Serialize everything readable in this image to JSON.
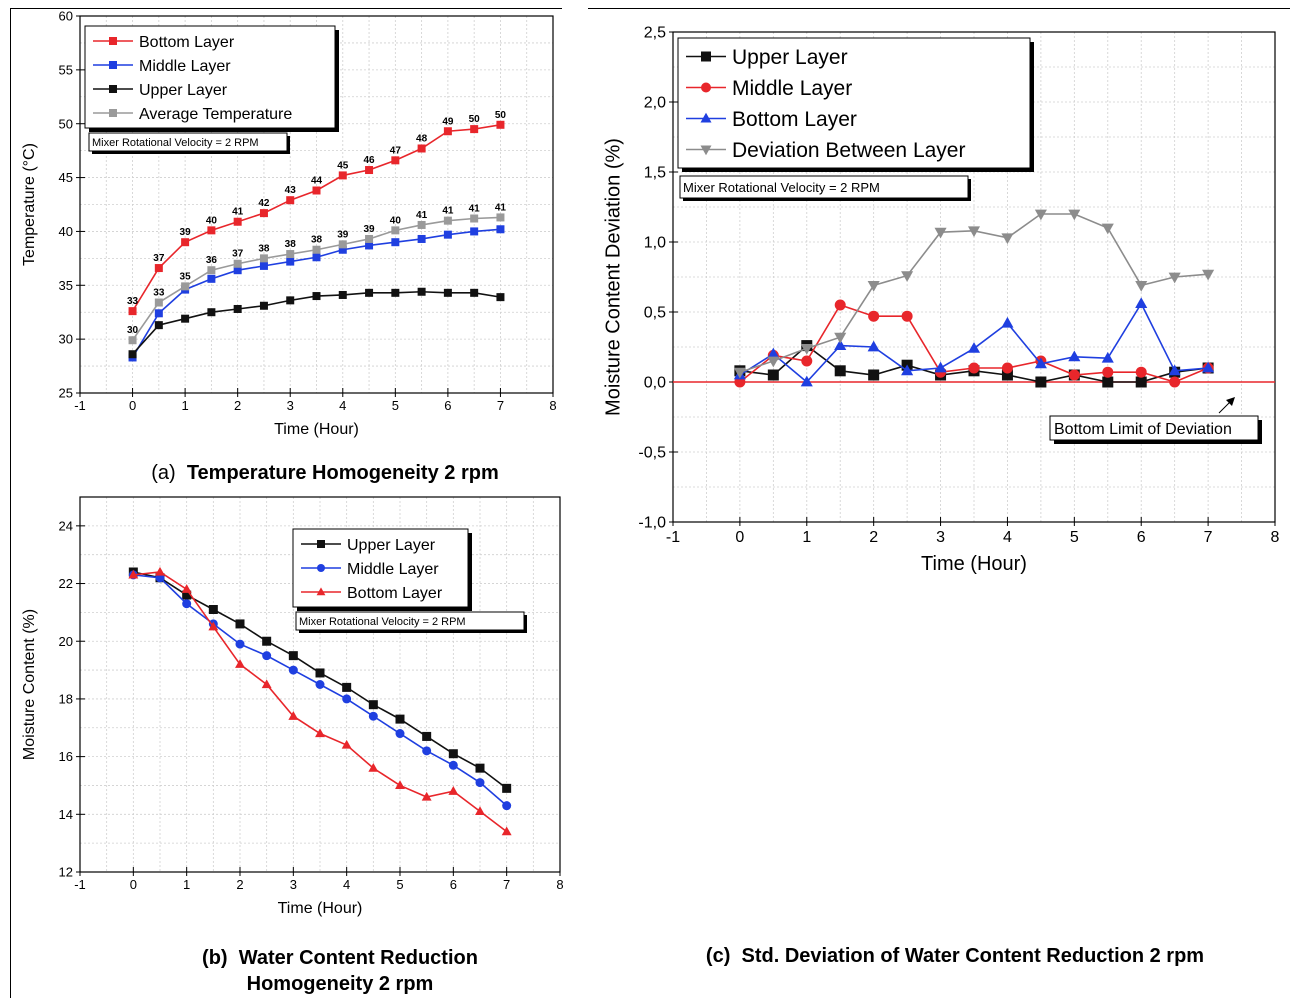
{
  "figure_panels": [
    {
      "letter": "(a)",
      "caption": "Temperature Homogeneity 2 rpm"
    },
    {
      "letter": "(b)",
      "caption_lines": [
        "Water Content Reduction",
        "Homogeneity 2 rpm"
      ]
    },
    {
      "letter": "(c)",
      "caption": "Std. Deviation of Water Content Reduction 2 rpm"
    }
  ],
  "chart_data": [
    {
      "id": "a",
      "type": "line",
      "xlabel": "Time (Hour)",
      "ylabel": "Temperature (°C)",
      "xlim": [
        -1,
        8
      ],
      "ylim": [
        25,
        60
      ],
      "xticks": [
        "-1",
        "0",
        "1",
        "2",
        "3",
        "4",
        "5",
        "6",
        "7",
        "8"
      ],
      "yticks": [
        "25",
        "30",
        "35",
        "40",
        "45",
        "50",
        "55",
        "60"
      ],
      "grid": true,
      "legend_position": "top-left",
      "annotation": "Mixer Rotational Velocity = 2 RPM",
      "x": [
        0,
        0.5,
        1,
        1.5,
        2,
        2.5,
        3,
        3.5,
        4,
        4.5,
        5,
        5.5,
        6,
        6.5,
        7
      ],
      "series": [
        {
          "name": "Bottom Layer",
          "color": "#e8262b",
          "marker": "square",
          "values": [
            32.6,
            36.6,
            39.0,
            40.1,
            40.9,
            41.7,
            42.9,
            43.8,
            45.2,
            45.7,
            46.6,
            47.7,
            49.3,
            49.5,
            49.9
          ],
          "labels": [
            "33",
            "37",
            "39",
            "40",
            "41",
            "42",
            "43",
            "44",
            "45",
            "46",
            "47",
            "48",
            "49",
            "50",
            "50"
          ]
        },
        {
          "name": "Middle Layer",
          "color": "#1f3fe0",
          "marker": "square",
          "values": [
            28.3,
            32.4,
            34.6,
            35.6,
            36.4,
            36.8,
            37.2,
            37.6,
            38.3,
            38.7,
            39.0,
            39.3,
            39.7,
            40.0,
            40.2
          ]
        },
        {
          "name": "Upper Layer",
          "color": "#111111",
          "marker": "square",
          "values": [
            28.6,
            31.3,
            31.9,
            32.5,
            32.8,
            33.1,
            33.6,
            34.0,
            34.1,
            34.3,
            34.3,
            34.4,
            34.3,
            34.3,
            33.9
          ]
        },
        {
          "name": "Average Temperature",
          "color": "#9a9a9a",
          "marker": "square",
          "values": [
            29.9,
            33.4,
            34.9,
            36.4,
            37.0,
            37.5,
            37.9,
            38.3,
            38.8,
            39.3,
            40.1,
            40.6,
            41.0,
            41.2,
            41.3
          ],
          "labels": [
            "30",
            "33",
            "35",
            "36",
            "37",
            "38",
            "38",
            "38",
            "39",
            "39",
            "40",
            "41",
            "41",
            "41",
            "41"
          ]
        }
      ]
    },
    {
      "id": "b",
      "type": "line",
      "xlabel": "Time (Hour)",
      "ylabel": "Moisture Content (%)",
      "xlim": [
        -1,
        8
      ],
      "ylim": [
        12,
        25
      ],
      "xticks": [
        "-1",
        "0",
        "1",
        "2",
        "3",
        "4",
        "5",
        "6",
        "7",
        "8"
      ],
      "yticks": [
        "12",
        "14",
        "16",
        "18",
        "20",
        "22",
        "24"
      ],
      "grid": true,
      "legend_position": "top-right",
      "annotation": "Mixer Rotational Velocity = 2 RPM",
      "x": [
        0,
        0.5,
        1,
        1.5,
        2,
        2.5,
        3,
        3.5,
        4,
        4.5,
        5,
        5.5,
        6,
        6.5,
        7
      ],
      "series": [
        {
          "name": "Upper Layer",
          "color": "#111111",
          "marker": "square",
          "values": [
            22.4,
            22.2,
            21.6,
            21.1,
            20.6,
            20.0,
            19.5,
            18.9,
            18.4,
            17.8,
            17.3,
            16.7,
            16.1,
            15.6,
            14.9
          ]
        },
        {
          "name": "Middle Layer",
          "color": "#1f3fe0",
          "marker": "circle",
          "values": [
            22.3,
            22.2,
            21.3,
            20.6,
            19.9,
            19.5,
            19.0,
            18.5,
            18.0,
            17.4,
            16.8,
            16.2,
            15.7,
            15.1,
            14.3
          ]
        },
        {
          "name": "Bottom Layer",
          "color": "#e8262b",
          "marker": "triangle",
          "values": [
            22.3,
            22.4,
            21.8,
            20.5,
            19.2,
            18.5,
            17.4,
            16.8,
            16.4,
            15.6,
            15.0,
            14.6,
            14.8,
            14.1,
            13.4
          ]
        }
      ]
    },
    {
      "id": "c",
      "type": "line",
      "xlabel": "Time (Hour)",
      "ylabel": "Moisture Content Deviation (%)",
      "xlim": [
        -1,
        8
      ],
      "ylim": [
        -1.0,
        2.5
      ],
      "xticks": [
        "-1",
        "0",
        "1",
        "2",
        "3",
        "4",
        "5",
        "6",
        "7",
        "8"
      ],
      "yticks": [
        "-1,0",
        "-0,5",
        "0,0",
        "0,5",
        "1,0",
        "1,5",
        "2,0",
        "2,5"
      ],
      "grid": true,
      "legend_position": "top-left",
      "annotation": "Mixer Rotational Velocity = 2 RPM",
      "reference_line": {
        "y": 0,
        "color": "#e8262b",
        "label": "Bottom Limit of Deviation"
      },
      "x": [
        0,
        0.5,
        1,
        1.5,
        2,
        2.5,
        3,
        3.5,
        4,
        4.5,
        5,
        5.5,
        6,
        6.5,
        7
      ],
      "series": [
        {
          "name": "Upper Layer",
          "color": "#111111",
          "marker": "square",
          "values": [
            0.08,
            0.05,
            0.26,
            0.08,
            0.05,
            0.12,
            0.05,
            0.08,
            0.05,
            0.0,
            0.05,
            0.0,
            0.0,
            0.07,
            0.1
          ]
        },
        {
          "name": "Middle Layer",
          "color": "#e8262b",
          "marker": "circle",
          "values": [
            0.0,
            0.19,
            0.15,
            0.55,
            0.47,
            0.47,
            0.07,
            0.1,
            0.1,
            0.15,
            0.05,
            0.07,
            0.07,
            0.0,
            0.1
          ]
        },
        {
          "name": "Bottom Layer",
          "color": "#1f3fe0",
          "marker": "triangle",
          "values": [
            0.05,
            0.2,
            0.0,
            0.26,
            0.25,
            0.08,
            0.1,
            0.24,
            0.42,
            0.13,
            0.18,
            0.17,
            0.56,
            0.08,
            0.1
          ]
        },
        {
          "name": "Deviation Between Layer",
          "color": "#8c8c8c",
          "marker": "triangle-down",
          "values": [
            0.07,
            0.15,
            0.24,
            0.32,
            0.69,
            0.76,
            1.07,
            1.08,
            1.03,
            1.2,
            1.2,
            1.1,
            0.69,
            0.75,
            0.77
          ]
        }
      ]
    }
  ]
}
